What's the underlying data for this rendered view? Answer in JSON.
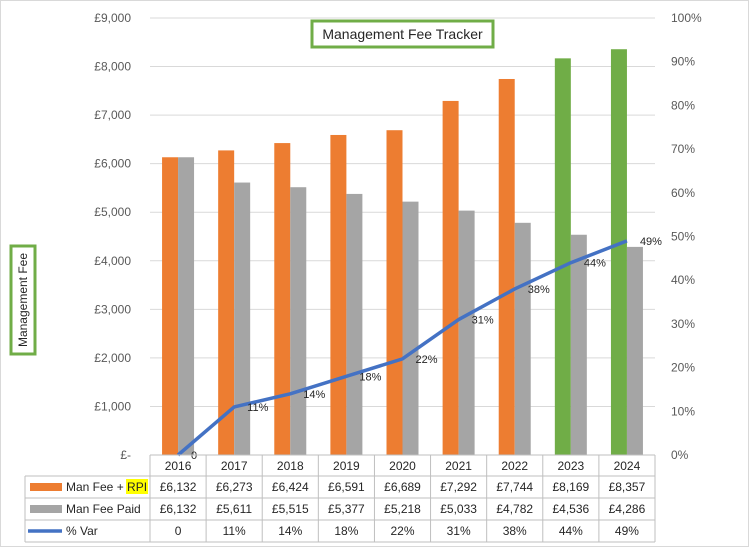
{
  "chart_data": {
    "type": "bar",
    "title": "Management Fee Tracker",
    "ylabel": "Management Fee",
    "ylim": [
      0,
      9000
    ],
    "y2lim": [
      0,
      100
    ],
    "y_ticks": [
      "£-",
      "£1,000",
      "£2,000",
      "£3,000",
      "£4,000",
      "£5,000",
      "£6,000",
      "£7,000",
      "£8,000",
      "£9,000"
    ],
    "y2_ticks": [
      "0%",
      "10%",
      "20%",
      "30%",
      "40%",
      "50%",
      "60%",
      "70%",
      "80%",
      "90%",
      "100%"
    ],
    "categories": [
      "2016",
      "2017",
      "2018",
      "2019",
      "2020",
      "2021",
      "2022",
      "2023",
      "2024"
    ],
    "series": [
      {
        "name": "Man Fee + RPI",
        "name_prefix": "Man Fee + ",
        "name_highlight": "RPI",
        "type": "bar",
        "axis": "left",
        "color": "#ED7D31",
        "highlight_color": "#70AD47",
        "highlight_categories": [
          "2023",
          "2024"
        ],
        "values": [
          6132,
          6273,
          6424,
          6591,
          6689,
          7292,
          7744,
          8169,
          8357
        ],
        "table_values": [
          "£6,132",
          "£6,273",
          "£6,424",
          "£6,591",
          "£6,689",
          "£7,292",
          "£7,744",
          "£8,169",
          "£8,357"
        ]
      },
      {
        "name": "Man Fee Paid",
        "type": "bar",
        "axis": "left",
        "color": "#A5A5A5",
        "values": [
          6132,
          5611,
          5515,
          5377,
          5218,
          5033,
          4782,
          4536,
          4286
        ],
        "table_values": [
          "£6,132",
          "£5,611",
          "£5,515",
          "£5,377",
          "£5,218",
          "£5,033",
          "£4,782",
          "£4,536",
          "£4,286"
        ]
      },
      {
        "name": "% Var",
        "type": "line",
        "axis": "right",
        "color": "#4472C4",
        "values": [
          0,
          11,
          14,
          18,
          22,
          31,
          38,
          44,
          49
        ],
        "labels": [
          "0",
          "11%",
          "14%",
          "18%",
          "22%",
          "31%",
          "38%",
          "44%",
          "49%"
        ],
        "table_values": [
          "0",
          "11%",
          "14%",
          "18%",
          "22%",
          "31%",
          "38%",
          "44%",
          "49%"
        ]
      }
    ],
    "title_box_color": "#70AD47",
    "grid": true,
    "legend": "data-table-left"
  }
}
